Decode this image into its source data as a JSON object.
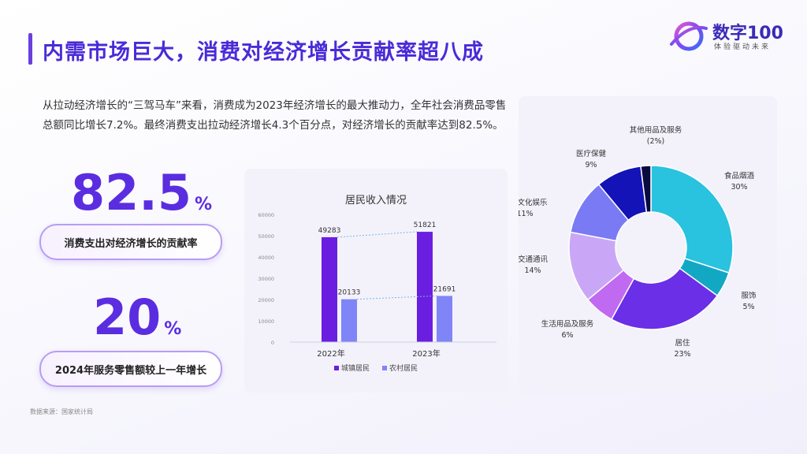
{
  "header": {
    "title": "内需市场巨大，消费对经济增长贡献率超八成"
  },
  "logo": {
    "name": "数字100",
    "tagline": "体验驱动未来"
  },
  "intro": "从拉动经济增长的“三驾马车”来看，消费成为2023年经济增长的最大推动力，全年社会消费品零售总额同比增长7.2%。最终消费支出拉动经济增长4.3个百分点，对经济增长的贡献率达到82.5%。",
  "stats": [
    {
      "value": "82.5",
      "unit": "%",
      "label": "消费支出对经济增长的贡献率"
    },
    {
      "value": "20",
      "unit": "%",
      "label": "2024年服务零售额较上一年增长"
    }
  ],
  "source": "数据来源：国家统计局",
  "colors": {
    "accent": "#5a2de0",
    "urban": "#6a1ee0",
    "rural": "#7f85f7"
  },
  "chart_data": [
    {
      "type": "bar",
      "title": "居民收入情况",
      "categories": [
        "2022年",
        "2023年"
      ],
      "series": [
        {
          "name": "城镇居民",
          "values": [
            49283,
            51821
          ],
          "labels": [
            "49283",
            "51821"
          ],
          "color": "#6a1ee0"
        },
        {
          "name": "农村居民",
          "values": [
            20133,
            21691
          ],
          "labels": [
            "20133",
            "21691"
          ],
          "color": "#7f85f7"
        }
      ],
      "ylim": [
        0,
        60000
      ],
      "yticks": [
        "0",
        "10000",
        "20000",
        "30000",
        "40000",
        "50000",
        "60000"
      ],
      "legend": "bottom"
    },
    {
      "type": "pie",
      "style": "donut",
      "slices": [
        {
          "name": "食品烟酒",
          "value": 30,
          "label": "30%",
          "color": "#29c2df"
        },
        {
          "name": "服饰",
          "value": 5,
          "label": "5%",
          "color": "#12a8c4"
        },
        {
          "name": "居住",
          "value": 23,
          "label": "23%",
          "color": "#6a2fe6"
        },
        {
          "name": "生活用品及服务",
          "value": 6,
          "label": "6%",
          "color": "#c06af2"
        },
        {
          "name": "交通通讯",
          "value": 14,
          "label": "14%",
          "color": "#caa7f6"
        },
        {
          "name": "教育文化娱乐",
          "value": 11,
          "label": "11%",
          "color": "#7a7af4"
        },
        {
          "name": "医疗保健",
          "value": 9,
          "label": "9%",
          "color": "#1313b8"
        },
        {
          "name": "其他用品及服务",
          "value": 2,
          "label": "(2%)",
          "color": "#0b0a40"
        }
      ]
    }
  ]
}
